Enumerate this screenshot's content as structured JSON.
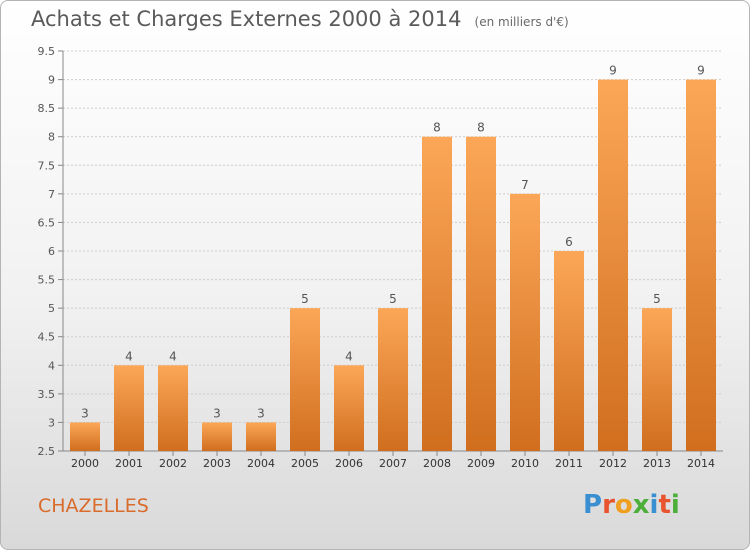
{
  "title": "Achats et Charges Externes 2000 à 2014",
  "subtitle": "(en milliers d'€)",
  "commune": "CHAZELLES",
  "brand": {
    "name": "Proxiti",
    "letters": [
      "P",
      "r",
      "o",
      "x",
      "i",
      "t",
      "i"
    ],
    "letter_colors": [
      "#3a8fd0",
      "#e8542e",
      "#f0a020",
      "#4caf3a",
      "#3a8fd0",
      "#e8542e",
      "#4caf3a"
    ]
  },
  "colors": {
    "bar_light": "#fba757",
    "bar_dark": "#d06e1e",
    "grid": "#cccccc",
    "axis": "#888888"
  },
  "chart_data": {
    "type": "bar",
    "title": "Achats et Charges Externes 2000 à 2014",
    "subtitle": "(en milliers d'€)",
    "xlabel": "",
    "ylabel": "",
    "categories": [
      "2000",
      "2001",
      "2002",
      "2003",
      "2004",
      "2005",
      "2006",
      "2007",
      "2008",
      "2009",
      "2010",
      "2011",
      "2012",
      "2013",
      "2014"
    ],
    "values": [
      3,
      4,
      4,
      3,
      3,
      5,
      4,
      5,
      8,
      8,
      7,
      6,
      9,
      5,
      9
    ],
    "data_labels": [
      "3",
      "4",
      "4",
      "3",
      "3",
      "5",
      "4",
      "5",
      "8",
      "8",
      "7",
      "6",
      "9",
      "5",
      "9"
    ],
    "ylim": [
      2.5,
      9.5
    ],
    "yticks": [
      2.5,
      3,
      3.5,
      4,
      4.5,
      5,
      5.5,
      6,
      6.5,
      7,
      7.5,
      8,
      8.5,
      9,
      9.5
    ],
    "ytick_labels": [
      "2.5",
      "3",
      "3.5",
      "4",
      "4.5",
      "5",
      "5.5",
      "6",
      "6.5",
      "7",
      "7.5",
      "8",
      "8.5",
      "9",
      "9.5"
    ],
    "grid": true,
    "legend": "none"
  }
}
